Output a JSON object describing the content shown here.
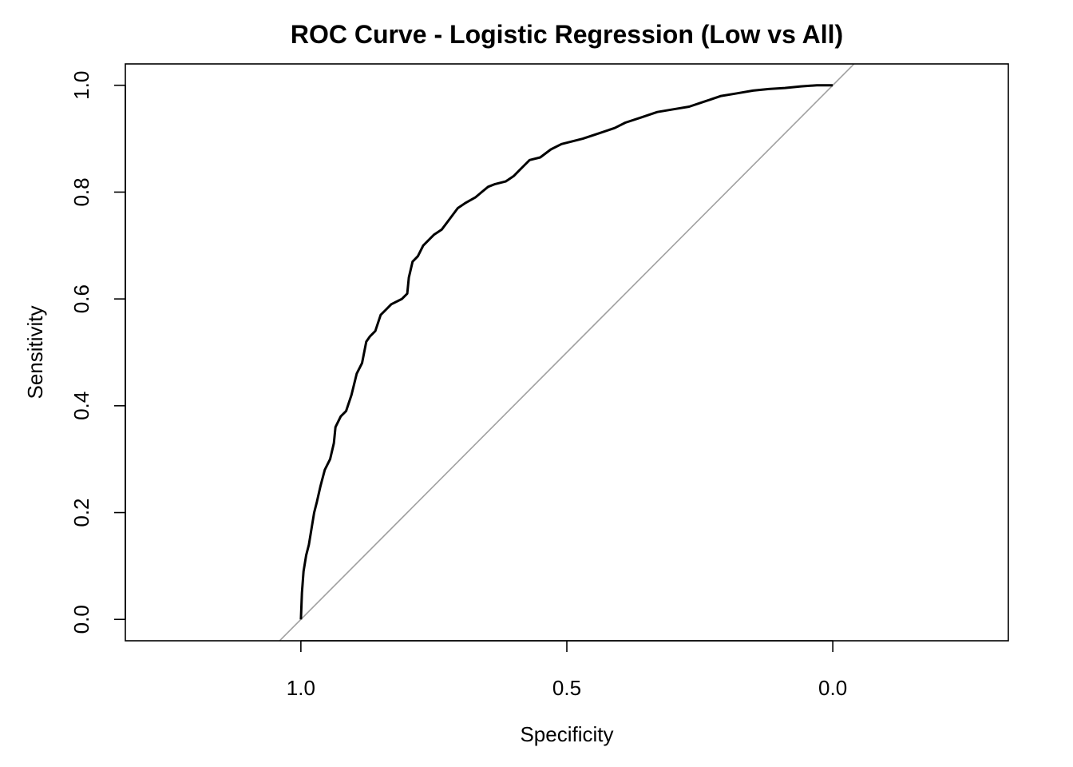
{
  "chart_data": {
    "type": "line",
    "title": "ROC Curve - Logistic Regression (Low vs All)",
    "xlabel": "Specificity",
    "ylabel": "Sensitivity",
    "x_reversed": true,
    "xlim": [
      1.33,
      -0.33
    ],
    "ylim": [
      -0.04,
      1.04
    ],
    "x_ticks": [
      {
        "value": 1.0,
        "label": "1.0"
      },
      {
        "value": 0.5,
        "label": "0.5"
      },
      {
        "value": 0.0,
        "label": "0.0"
      }
    ],
    "y_ticks": [
      {
        "value": 0.0,
        "label": "0.0"
      },
      {
        "value": 0.2,
        "label": "0.2"
      },
      {
        "value": 0.4,
        "label": "0.4"
      },
      {
        "value": 0.6,
        "label": "0.6"
      },
      {
        "value": 0.8,
        "label": "0.8"
      },
      {
        "value": 1.0,
        "label": "1.0"
      }
    ],
    "grid": false,
    "legend": "none",
    "series": [
      {
        "name": "",
        "color": "#000000",
        "points": [
          [
            1.0,
            0.0
          ],
          [
            0.998,
            0.05
          ],
          [
            0.995,
            0.09
          ],
          [
            0.99,
            0.12
          ],
          [
            0.985,
            0.14
          ],
          [
            0.98,
            0.17
          ],
          [
            0.975,
            0.2
          ],
          [
            0.97,
            0.22
          ],
          [
            0.963,
            0.25
          ],
          [
            0.955,
            0.28
          ],
          [
            0.945,
            0.3
          ],
          [
            0.938,
            0.33
          ],
          [
            0.935,
            0.36
          ],
          [
            0.925,
            0.38
          ],
          [
            0.915,
            0.39
          ],
          [
            0.905,
            0.42
          ],
          [
            0.9,
            0.44
          ],
          [
            0.895,
            0.46
          ],
          [
            0.885,
            0.48
          ],
          [
            0.877,
            0.52
          ],
          [
            0.87,
            0.53
          ],
          [
            0.86,
            0.54
          ],
          [
            0.85,
            0.57
          ],
          [
            0.84,
            0.58
          ],
          [
            0.83,
            0.59
          ],
          [
            0.81,
            0.6
          ],
          [
            0.8,
            0.61
          ],
          [
            0.797,
            0.64
          ],
          [
            0.79,
            0.67
          ],
          [
            0.78,
            0.68
          ],
          [
            0.77,
            0.7
          ],
          [
            0.75,
            0.72
          ],
          [
            0.735,
            0.73
          ],
          [
            0.72,
            0.75
          ],
          [
            0.705,
            0.77
          ],
          [
            0.69,
            0.78
          ],
          [
            0.672,
            0.79
          ],
          [
            0.66,
            0.8
          ],
          [
            0.648,
            0.81
          ],
          [
            0.635,
            0.815
          ],
          [
            0.615,
            0.82
          ],
          [
            0.6,
            0.83
          ],
          [
            0.59,
            0.84
          ],
          [
            0.58,
            0.85
          ],
          [
            0.57,
            0.86
          ],
          [
            0.55,
            0.865
          ],
          [
            0.53,
            0.88
          ],
          [
            0.51,
            0.89
          ],
          [
            0.49,
            0.895
          ],
          [
            0.47,
            0.9
          ],
          [
            0.44,
            0.91
          ],
          [
            0.41,
            0.92
          ],
          [
            0.39,
            0.93
          ],
          [
            0.36,
            0.94
          ],
          [
            0.33,
            0.95
          ],
          [
            0.3,
            0.955
          ],
          [
            0.27,
            0.96
          ],
          [
            0.24,
            0.97
          ],
          [
            0.21,
            0.98
          ],
          [
            0.18,
            0.985
          ],
          [
            0.15,
            0.99
          ],
          [
            0.12,
            0.993
          ],
          [
            0.09,
            0.995
          ],
          [
            0.06,
            0.998
          ],
          [
            0.03,
            1.0
          ],
          [
            0.0,
            1.0
          ]
        ]
      }
    ],
    "reference_line": {
      "color": "#a0a0a0",
      "from": [
        1.0,
        0.0
      ],
      "to": [
        0.0,
        1.0
      ]
    }
  }
}
